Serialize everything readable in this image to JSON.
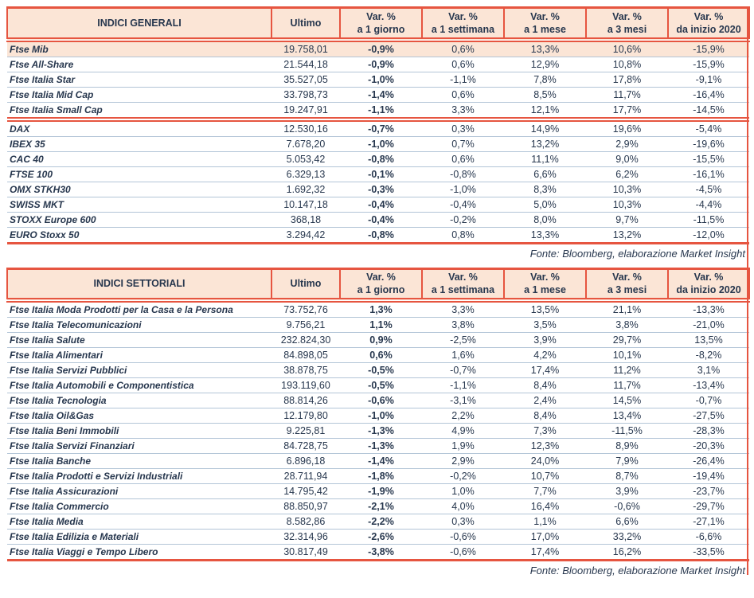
{
  "colors": {
    "accent_red": "#e65540",
    "header_bg_peach": "#fbe5d6",
    "row_divider_blue": "#b3c5d7",
    "text_navy": "#27374e"
  },
  "tables": [
    {
      "headers": {
        "title": "INDICI GENERALI",
        "ultimo": "Ultimo",
        "vars": [
          {
            "top": "Var. %",
            "bottom": "a 1 giorno"
          },
          {
            "top": "Var. %",
            "bottom": "a 1 settimana"
          },
          {
            "top": "Var. %",
            "bottom": "a 1 mese"
          },
          {
            "top": "Var. %",
            "bottom": "a 3 mesi"
          },
          {
            "top": "Var. %",
            "bottom": "da inizio 2020"
          }
        ]
      },
      "groups": [
        {
          "rows": [
            {
              "name": "Ftse Mib",
              "ultimo": "19.758,01",
              "vals": [
                "-0,9%",
                "0,6%",
                "13,3%",
                "10,6%",
                "-15,9%"
              ],
              "highlight": true
            },
            {
              "name": "Ftse All-Share",
              "ultimo": "21.544,18",
              "vals": [
                "-0,9%",
                "0,6%",
                "12,9%",
                "10,8%",
                "-15,9%"
              ]
            },
            {
              "name": "Ftse Italia Star",
              "ultimo": "35.527,05",
              "vals": [
                "-1,0%",
                "-1,1%",
                "7,8%",
                "17,8%",
                "-9,1%"
              ]
            },
            {
              "name": "Ftse Italia Mid Cap",
              "ultimo": "33.798,73",
              "vals": [
                "-1,4%",
                "0,6%",
                "8,5%",
                "11,7%",
                "-16,4%"
              ]
            },
            {
              "name": "Ftse Italia Small Cap",
              "ultimo": "19.247,91",
              "vals": [
                "-1,1%",
                "3,3%",
                "12,1%",
                "17,7%",
                "-14,5%"
              ]
            }
          ]
        },
        {
          "rows": [
            {
              "name": "DAX",
              "ultimo": "12.530,16",
              "vals": [
                "-0,7%",
                "0,3%",
                "14,9%",
                "19,6%",
                "-5,4%"
              ]
            },
            {
              "name": "IBEX 35",
              "ultimo": "7.678,20",
              "vals": [
                "-1,0%",
                "0,7%",
                "13,2%",
                "2,9%",
                "-19,6%"
              ]
            },
            {
              "name": "CAC 40",
              "ultimo": "5.053,42",
              "vals": [
                "-0,8%",
                "0,6%",
                "11,1%",
                "9,0%",
                "-15,5%"
              ]
            },
            {
              "name": "FTSE 100",
              "ultimo": "6.329,13",
              "vals": [
                "-0,1%",
                "-0,8%",
                "6,6%",
                "6,2%",
                "-16,1%"
              ]
            },
            {
              "name": "OMX STKH30",
              "ultimo": "1.692,32",
              "vals": [
                "-0,3%",
                "-1,0%",
                "8,3%",
                "10,3%",
                "-4,5%"
              ]
            },
            {
              "name": "SWISS MKT",
              "ultimo": "10.147,18",
              "vals": [
                "-0,4%",
                "-0,4%",
                "5,0%",
                "10,3%",
                "-4,4%"
              ]
            },
            {
              "name": "STOXX Europe 600",
              "ultimo": "368,18",
              "vals": [
                "-0,4%",
                "-0,2%",
                "8,0%",
                "9,7%",
                "-11,5%"
              ]
            },
            {
              "name": "EURO Stoxx 50",
              "ultimo": "3.294,42",
              "vals": [
                "-0,8%",
                "0,8%",
                "13,3%",
                "13,2%",
                "-12,0%"
              ]
            }
          ]
        }
      ],
      "source": "Fonte: Bloomberg, elaborazione Market Insight"
    },
    {
      "headers": {
        "title": "INDICI SETTORIALI",
        "ultimo": "Ultimo",
        "vars": [
          {
            "top": "Var. %",
            "bottom": "a 1 giorno"
          },
          {
            "top": "Var. %",
            "bottom": "a 1 settimana"
          },
          {
            "top": "Var. %",
            "bottom": "a 1 mese"
          },
          {
            "top": "Var. %",
            "bottom": "a 3 mesi"
          },
          {
            "top": "Var. %",
            "bottom": "da inizio 2020"
          }
        ]
      },
      "groups": [
        {
          "rows": [
            {
              "name": "Ftse Italia Moda Prodotti per la Casa e la Persona",
              "ultimo": "73.752,76",
              "vals": [
                "1,3%",
                "3,3%",
                "13,5%",
                "21,1%",
                "-13,3%"
              ]
            },
            {
              "name": "Ftse Italia Telecomunicazioni",
              "ultimo": "9.756,21",
              "vals": [
                "1,1%",
                "3,8%",
                "3,5%",
                "3,8%",
                "-21,0%"
              ]
            },
            {
              "name": "Ftse Italia Salute",
              "ultimo": "232.824,30",
              "vals": [
                "0,9%",
                "-2,5%",
                "3,9%",
                "29,7%",
                "13,5%"
              ]
            },
            {
              "name": "Ftse Italia Alimentari",
              "ultimo": "84.898,05",
              "vals": [
                "0,6%",
                "1,6%",
                "4,2%",
                "10,1%",
                "-8,2%"
              ]
            },
            {
              "name": "Ftse Italia Servizi Pubblici",
              "ultimo": "38.878,75",
              "vals": [
                "-0,5%",
                "-0,7%",
                "17,4%",
                "11,2%",
                "3,1%"
              ]
            },
            {
              "name": "Ftse Italia Automobili e Componentistica",
              "ultimo": "193.119,60",
              "vals": [
                "-0,5%",
                "-1,1%",
                "8,4%",
                "11,7%",
                "-13,4%"
              ]
            },
            {
              "name": "Ftse Italia Tecnologia",
              "ultimo": "88.814,26",
              "vals": [
                "-0,6%",
                "-3,1%",
                "2,4%",
                "14,5%",
                "-0,7%"
              ]
            },
            {
              "name": "Ftse Italia Oil&Gas",
              "ultimo": "12.179,80",
              "vals": [
                "-1,0%",
                "2,2%",
                "8,4%",
                "13,4%",
                "-27,5%"
              ]
            },
            {
              "name": "Ftse Italia Beni Immobili",
              "ultimo": "9.225,81",
              "vals": [
                "-1,3%",
                "4,9%",
                "7,3%",
                "-11,5%",
                "-28,3%"
              ]
            },
            {
              "name": "Ftse Italia Servizi Finanziari",
              "ultimo": "84.728,75",
              "vals": [
                "-1,3%",
                "1,9%",
                "12,3%",
                "8,9%",
                "-20,3%"
              ]
            },
            {
              "name": "Ftse Italia Banche",
              "ultimo": "6.896,18",
              "vals": [
                "-1,4%",
                "2,9%",
                "24,0%",
                "7,9%",
                "-26,4%"
              ]
            },
            {
              "name": "Ftse Italia Prodotti e Servizi Industriali",
              "ultimo": "28.711,94",
              "vals": [
                "-1,8%",
                "-0,2%",
                "10,7%",
                "8,7%",
                "-19,4%"
              ]
            },
            {
              "name": "Ftse Italia Assicurazioni",
              "ultimo": "14.795,42",
              "vals": [
                "-1,9%",
                "1,0%",
                "7,7%",
                "3,9%",
                "-23,7%"
              ]
            },
            {
              "name": "Ftse Italia Commercio",
              "ultimo": "88.850,97",
              "vals": [
                "-2,1%",
                "4,0%",
                "16,4%",
                "-0,6%",
                "-29,7%"
              ]
            },
            {
              "name": "Ftse Italia Media",
              "ultimo": "8.582,86",
              "vals": [
                "-2,2%",
                "0,3%",
                "1,1%",
                "6,6%",
                "-27,1%"
              ]
            },
            {
              "name": "Ftse Italia Edilizia e Materiali",
              "ultimo": "32.314,96",
              "vals": [
                "-2,6%",
                "-0,6%",
                "17,0%",
                "33,2%",
                "-6,6%"
              ]
            },
            {
              "name": "Ftse Italia Viaggi e Tempo Libero",
              "ultimo": "30.817,49",
              "vals": [
                "-3,8%",
                "-0,6%",
                "17,4%",
                "16,2%",
                "-33,5%"
              ]
            }
          ]
        }
      ],
      "source": "Fonte: Bloomberg, elaborazione Market Insight"
    }
  ]
}
